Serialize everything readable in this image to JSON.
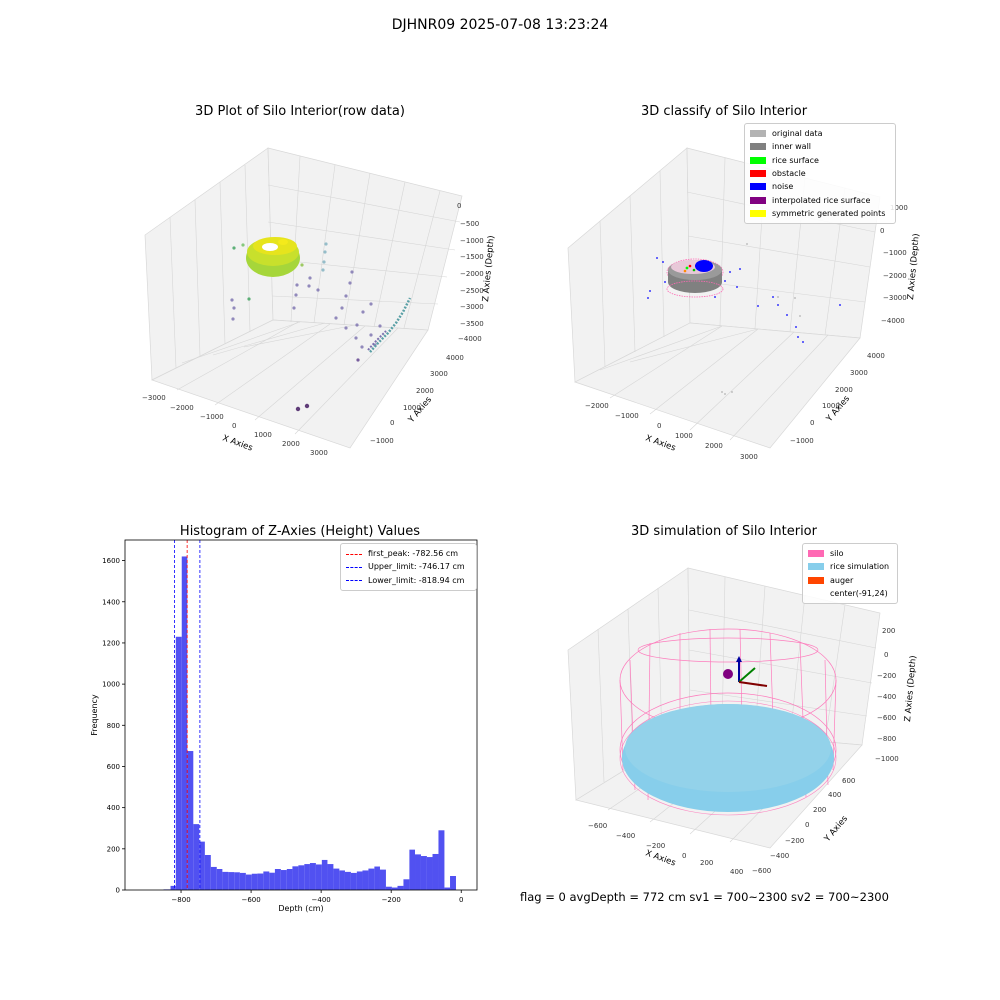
{
  "figure": {
    "title": "DJHNR09 2025-07-08 13:23:24",
    "footer": "flag = 0     avgDepth = 772 cm  sv1 = 700~2300  sv2 = 700~2300"
  },
  "panels": {
    "raw": {
      "title": "3D Plot of Silo Interior(row data)",
      "x_ticks": [
        "−3000",
        "−2000",
        "−1000",
        "0",
        "1000",
        "2000",
        "3000"
      ],
      "y_ticks": [
        "−1000",
        "0",
        "1000",
        "2000",
        "3000",
        "4000"
      ],
      "z_ticks": [
        "0",
        "−500",
        "−1000",
        "−1500",
        "−2000",
        "−2500",
        "−3000",
        "−3500",
        "−4000"
      ],
      "x_label": "X Axies",
      "y_label": "Y Axies",
      "z_label": "Z Axies (Depth)"
    },
    "classify": {
      "title": "3D classify of Silo Interior",
      "x_ticks": [
        "−2000",
        "−1000",
        "0",
        "1000",
        "2000",
        "3000"
      ],
      "y_ticks": [
        "−1000",
        "0",
        "1000",
        "2000",
        "3000",
        "4000"
      ],
      "z_ticks": [
        "0",
        "−1000",
        "−2000",
        "−3000",
        "−4000"
      ],
      "z_top_tick": "1000",
      "x_label": "X Axies",
      "y_label": "Y Axies",
      "z_label": "Z Axies (Depth)",
      "legend": [
        {
          "label": "original data",
          "color": "#b3b3b3"
        },
        {
          "label": "inner wall",
          "color": "#808080"
        },
        {
          "label": "rice surface",
          "color": "#00ff00"
        },
        {
          "label": "obstacle",
          "color": "#ff0000"
        },
        {
          "label": "noise",
          "color": "#0000ff"
        },
        {
          "label": "interpolated rice surface",
          "color": "#800080"
        },
        {
          "label": "symmetric generated points",
          "color": "#ffff00"
        }
      ]
    },
    "simulation": {
      "title": "3D simulation of Silo Interior",
      "x_ticks": [
        "−600",
        "−400",
        "−200",
        "0",
        "200",
        "400"
      ],
      "y_ticks": [
        "−600",
        "−400",
        "−200",
        "0",
        "200",
        "400",
        "600"
      ],
      "z_ticks": [
        "200",
        "0",
        "−200",
        "−400",
        "−600",
        "−800",
        "−1000"
      ],
      "x_label": "X Axies",
      "y_label": "Y Axies",
      "z_label": "Z Axies (Depth)",
      "legend": [
        {
          "label": "silo",
          "color": "#ff69b4"
        },
        {
          "label": "rice simulation",
          "color": "#87ceeb"
        },
        {
          "label": "auger",
          "color": "#ff4500"
        },
        {
          "label": "center(-91,24)",
          "color": ""
        }
      ]
    }
  },
  "chart_data": {
    "type": "bar",
    "title": "Histogram of Z-Axies (Height) Values",
    "xlabel": "Depth (cm)",
    "ylabel": "Frequency",
    "xlim": [
      -960,
      45
    ],
    "ylim": [
      0,
      1700
    ],
    "x_ticks": [
      -800,
      -600,
      -400,
      -200,
      0
    ],
    "y_ticks": [
      0,
      200,
      400,
      600,
      800,
      1000,
      1200,
      1400,
      1600
    ],
    "bar_color": "#4848f0",
    "bins": [
      {
        "x0": -850,
        "x1": -830,
        "count": 3
      },
      {
        "x0": -830,
        "x1": -815,
        "count": 20
      },
      {
        "x0": -815,
        "x1": -798,
        "count": 1230
      },
      {
        "x0": -798,
        "x1": -782,
        "count": 1620
      },
      {
        "x0": -782,
        "x1": -765,
        "count": 675
      },
      {
        "x0": -765,
        "x1": -748,
        "count": 320
      },
      {
        "x0": -748,
        "x1": -732,
        "count": 235
      },
      {
        "x0": -732,
        "x1": -715,
        "count": 170
      },
      {
        "x0": -715,
        "x1": -698,
        "count": 112
      },
      {
        "x0": -698,
        "x1": -682,
        "count": 102
      },
      {
        "x0": -682,
        "x1": -665,
        "count": 88
      },
      {
        "x0": -665,
        "x1": -648,
        "count": 87
      },
      {
        "x0": -648,
        "x1": -632,
        "count": 86
      },
      {
        "x0": -632,
        "x1": -615,
        "count": 83
      },
      {
        "x0": -615,
        "x1": -598,
        "count": 75
      },
      {
        "x0": -598,
        "x1": -582,
        "count": 79
      },
      {
        "x0": -582,
        "x1": -565,
        "count": 80
      },
      {
        "x0": -565,
        "x1": -548,
        "count": 90
      },
      {
        "x0": -548,
        "x1": -532,
        "count": 84
      },
      {
        "x0": -532,
        "x1": -515,
        "count": 102
      },
      {
        "x0": -515,
        "x1": -498,
        "count": 97
      },
      {
        "x0": -498,
        "x1": -482,
        "count": 102
      },
      {
        "x0": -482,
        "x1": -465,
        "count": 115
      },
      {
        "x0": -465,
        "x1": -448,
        "count": 120
      },
      {
        "x0": -448,
        "x1": -432,
        "count": 126
      },
      {
        "x0": -432,
        "x1": -415,
        "count": 131
      },
      {
        "x0": -415,
        "x1": -398,
        "count": 124
      },
      {
        "x0": -398,
        "x1": -382,
        "count": 146
      },
      {
        "x0": -382,
        "x1": -365,
        "count": 126
      },
      {
        "x0": -365,
        "x1": -348,
        "count": 104
      },
      {
        "x0": -348,
        "x1": -332,
        "count": 95
      },
      {
        "x0": -332,
        "x1": -315,
        "count": 88
      },
      {
        "x0": -315,
        "x1": -298,
        "count": 83
      },
      {
        "x0": -298,
        "x1": -282,
        "count": 90
      },
      {
        "x0": -282,
        "x1": -265,
        "count": 95
      },
      {
        "x0": -265,
        "x1": -248,
        "count": 104
      },
      {
        "x0": -248,
        "x1": -232,
        "count": 114
      },
      {
        "x0": -232,
        "x1": -215,
        "count": 99
      },
      {
        "x0": -215,
        "x1": -198,
        "count": 16
      },
      {
        "x0": -198,
        "x1": -182,
        "count": 12
      },
      {
        "x0": -182,
        "x1": -165,
        "count": 20
      },
      {
        "x0": -165,
        "x1": -148,
        "count": 52
      },
      {
        "x0": -148,
        "x1": -132,
        "count": 196
      },
      {
        "x0": -132,
        "x1": -115,
        "count": 173
      },
      {
        "x0": -115,
        "x1": -98,
        "count": 165
      },
      {
        "x0": -98,
        "x1": -82,
        "count": 160
      },
      {
        "x0": -82,
        "x1": -65,
        "count": 175
      },
      {
        "x0": -65,
        "x1": -48,
        "count": 290
      },
      {
        "x0": -48,
        "x1": -32,
        "count": 12
      },
      {
        "x0": -32,
        "x1": -15,
        "count": 68
      }
    ],
    "vlines": [
      {
        "name": "first_peak: -782.56 cm",
        "x": -782.56,
        "color": "#ff0000"
      },
      {
        "name": "Upper_limit: -746.17 cm",
        "x": -746.17,
        "color": "#0000ff"
      },
      {
        "name": "Lower_limit: -818.94 cm",
        "x": -818.94,
        "color": "#0000ff"
      }
    ],
    "legend_position": "upper right"
  }
}
